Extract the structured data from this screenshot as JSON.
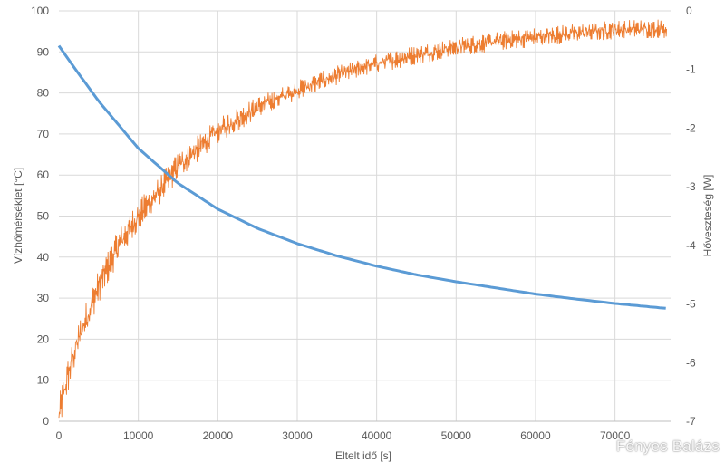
{
  "chart_data": {
    "type": "line",
    "xlabel": "Eltelt idő [s]",
    "ylabel": "Vízhőmérséklet [°C]",
    "y2label": "Hőveszteség [W]",
    "xlim": [
      0,
      77000
    ],
    "ylim": [
      0,
      100
    ],
    "y2lim": [
      -7,
      0
    ],
    "x_ticks": [
      0,
      10000,
      20000,
      30000,
      40000,
      50000,
      60000,
      70000
    ],
    "y_ticks": [
      0,
      10,
      20,
      30,
      40,
      50,
      60,
      70,
      80,
      90,
      100
    ],
    "y2_ticks": [
      -7,
      -6,
      -5,
      -4,
      -3,
      -2,
      -1,
      0
    ],
    "grid": true,
    "series": [
      {
        "axis": "left",
        "color": "#5b9bd5",
        "x": [
          0,
          2000,
          5000,
          10000,
          15000,
          20000,
          25000,
          30000,
          35000,
          40000,
          45000,
          50000,
          55000,
          60000,
          65000,
          70000,
          76500
        ],
        "y": [
          91.5,
          86.0,
          78.0,
          66.5,
          58.0,
          51.7,
          47.0,
          43.3,
          40.3,
          37.8,
          35.7,
          34.0,
          32.5,
          31.0,
          29.8,
          28.7,
          27.5
        ]
      },
      {
        "axis": "right",
        "color": "#ed7d31",
        "x": [
          0,
          1000,
          2000,
          3000,
          5000,
          7500,
          10000,
          12500,
          15000,
          20000,
          25000,
          30000,
          35000,
          40000,
          45000,
          50000,
          55000,
          60000,
          65000,
          70000,
          76500
        ],
        "y": [
          -6.9,
          -6.3,
          -5.8,
          -5.4,
          -4.7,
          -4.0,
          -3.5,
          -3.1,
          -2.65,
          -2.05,
          -1.65,
          -1.35,
          -1.1,
          -0.9,
          -0.75,
          -0.62,
          -0.52,
          -0.45,
          -0.38,
          -0.32,
          -0.3
        ]
      }
    ]
  },
  "watermark": "Fényes Balázs"
}
